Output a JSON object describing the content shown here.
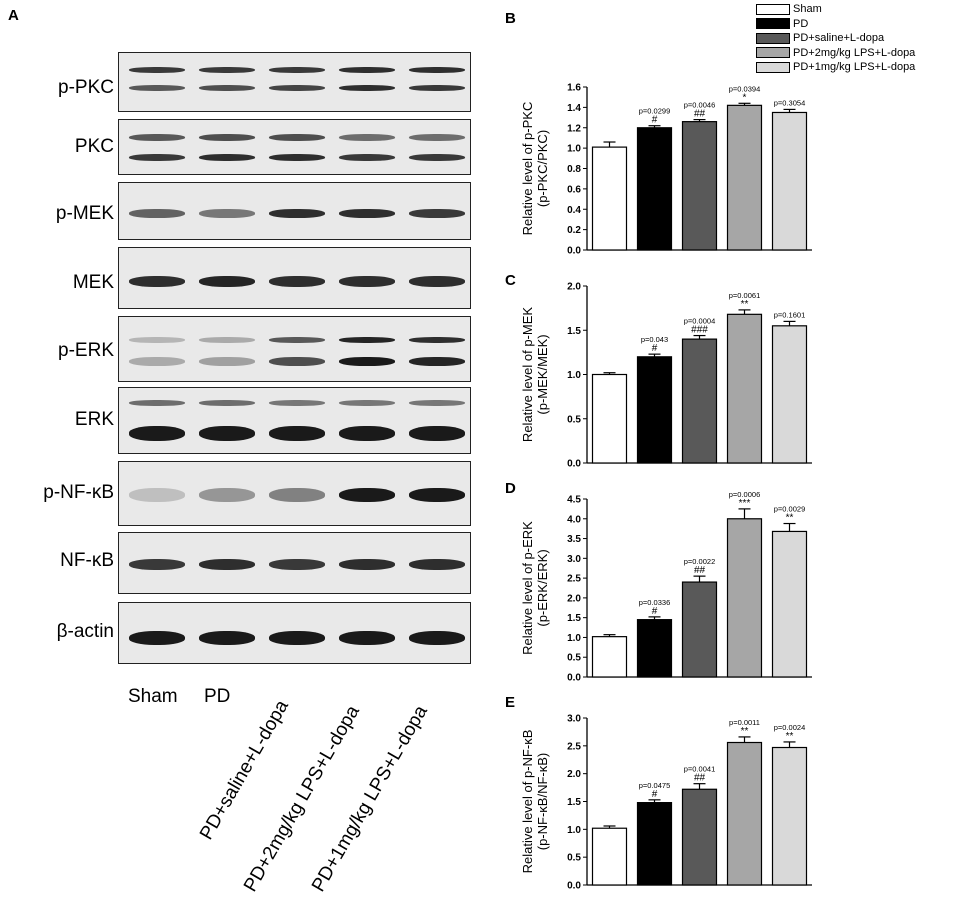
{
  "panel_letters": {
    "A": "A",
    "B": "B",
    "C": "C",
    "D": "D",
    "E": "E"
  },
  "blot": {
    "rows": [
      {
        "label": "p-PKC"
      },
      {
        "label": "PKC"
      },
      {
        "label": "p-MEK"
      },
      {
        "label": "MEK"
      },
      {
        "label": "p-ERK"
      },
      {
        "label": "ERK"
      },
      {
        "label": "p-NF-κB"
      },
      {
        "label": "NF-κB"
      },
      {
        "label": "β-actin"
      }
    ],
    "lanes": [
      "Sham",
      "PD",
      "PD+saline+L-dopa",
      "PD+2mg/kg LPS+L-dopa",
      "PD+1mg/kg LPS+L-dopa"
    ]
  },
  "legend": [
    {
      "name": "Sham",
      "color": "#ffffff"
    },
    {
      "name": "PD",
      "color": "#000000"
    },
    {
      "name": "PD+saline+L-dopa",
      "color": "#595959"
    },
    {
      "name": "PD+2mg/kg LPS+L-dopa",
      "color": "#a6a6a6"
    },
    {
      "name": "PD+1mg/kg LPS+L-dopa",
      "color": "#d9d9d9"
    }
  ],
  "chart_data": [
    {
      "panel": "B",
      "type": "bar",
      "categories": [
        "Sham",
        "PD",
        "PD+saline+L-dopa",
        "PD+2mg/kg LPS+L-dopa",
        "PD+1mg/kg LPS+L-dopa"
      ],
      "values": [
        1.01,
        1.2,
        1.26,
        1.42,
        1.35
      ],
      "errors": [
        0.05,
        0.02,
        0.02,
        0.02,
        0.03
      ],
      "annotations": [
        {
          "p": "",
          "sig": ""
        },
        {
          "p": "p=0.0299",
          "sig": "#"
        },
        {
          "p": "p=0.0046",
          "sig": "##"
        },
        {
          "p": "p=0.0394",
          "sig": "*"
        },
        {
          "p": "p=0.3054",
          "sig": ""
        }
      ],
      "ylabel_line1": "Relative level of  p-PKC",
      "ylabel_line2": "(p-PKC/PKC)",
      "ylim": [
        0,
        1.6
      ],
      "yticks": [
        "0.0",
        "0.2",
        "0.4",
        "0.6",
        "0.8",
        "1.0",
        "1.2",
        "1.4",
        "1.6"
      ]
    },
    {
      "panel": "C",
      "type": "bar",
      "categories": [
        "Sham",
        "PD",
        "PD+saline+L-dopa",
        "PD+2mg/kg LPS+L-dopa",
        "PD+1mg/kg LPS+L-dopa"
      ],
      "values": [
        1.0,
        1.2,
        1.4,
        1.68,
        1.55
      ],
      "errors": [
        0.02,
        0.03,
        0.04,
        0.05,
        0.05
      ],
      "annotations": [
        {
          "p": "",
          "sig": ""
        },
        {
          "p": "p=0.043",
          "sig": "#"
        },
        {
          "p": "p=0.0004",
          "sig": "###"
        },
        {
          "p": "p=0.0061",
          "sig": "**"
        },
        {
          "p": "p=0.1601",
          "sig": ""
        }
      ],
      "ylabel_line1": "Relative level of  p-MEK",
      "ylabel_line2": "(p-MEK/MEK)",
      "ylim": [
        0,
        2.0
      ],
      "yticks": [
        "0.0",
        "0.5",
        "1.0",
        "1.5",
        "2.0"
      ]
    },
    {
      "panel": "D",
      "type": "bar",
      "categories": [
        "Sham",
        "PD",
        "PD+saline+L-dopa",
        "PD+2mg/kg LPS+L-dopa",
        "PD+1mg/kg LPS+L-dopa"
      ],
      "values": [
        1.02,
        1.45,
        2.4,
        4.0,
        3.68
      ],
      "errors": [
        0.05,
        0.07,
        0.15,
        0.25,
        0.2
      ],
      "annotations": [
        {
          "p": "",
          "sig": ""
        },
        {
          "p": "p=0.0336",
          "sig": "#"
        },
        {
          "p": "p=0.0022",
          "sig": "##"
        },
        {
          "p": "p=0.0006",
          "sig": "***"
        },
        {
          "p": "p=0.0029",
          "sig": "**"
        }
      ],
      "ylabel_line1": "Relative level of  p-ERK",
      "ylabel_line2": "(p-ERK/ERK)",
      "ylim": [
        0,
        4.5
      ],
      "yticks": [
        "0.0",
        "0.5",
        "1.0",
        "1.5",
        "2.0",
        "2.5",
        "3.0",
        "3.5",
        "4.0",
        "4.5"
      ]
    },
    {
      "panel": "E",
      "type": "bar",
      "categories": [
        "Sham",
        "PD",
        "PD+saline+L-dopa",
        "PD+2mg/kg LPS+L-dopa",
        "PD+1mg/kg LPS+L-dopa"
      ],
      "values": [
        1.02,
        1.48,
        1.72,
        2.56,
        2.47
      ],
      "errors": [
        0.04,
        0.05,
        0.1,
        0.1,
        0.1
      ],
      "annotations": [
        {
          "p": "",
          "sig": ""
        },
        {
          "p": "p=0.0475",
          "sig": "#"
        },
        {
          "p": "p=0.0041",
          "sig": "##"
        },
        {
          "p": "p=0.0011",
          "sig": "**"
        },
        {
          "p": "p=0.0024",
          "sig": "**"
        }
      ],
      "ylabel_line1": "Relative level of  p-NF-κB",
      "ylabel_line2": "(p-NF-κB/NF-κB)",
      "ylim": [
        0,
        3.0
      ],
      "yticks": [
        "0.0",
        "0.5",
        "1.0",
        "1.5",
        "2.0",
        "2.5",
        "3.0"
      ]
    }
  ]
}
